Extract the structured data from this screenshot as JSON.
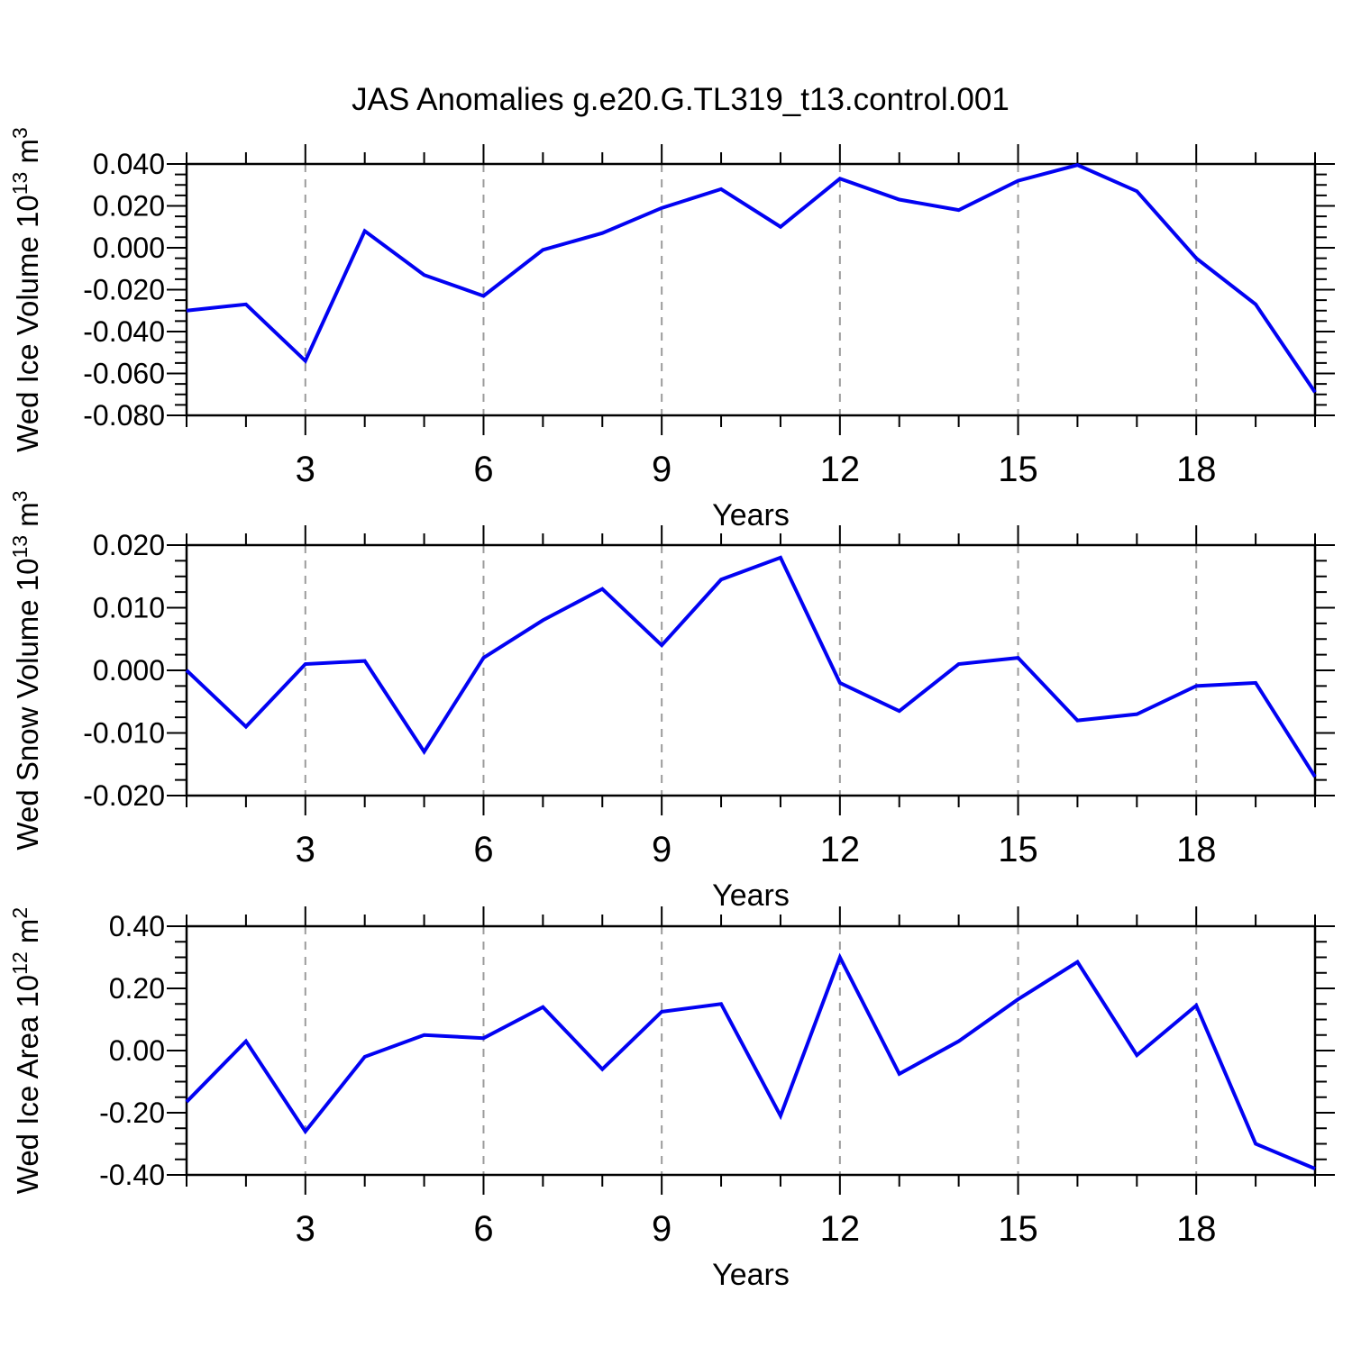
{
  "title": "JAS Anomalies g.e20.G.TL319_t13.control.001",
  "colors": {
    "line": "#0202f2",
    "grid": "#9b9b9b",
    "axis": "#000000",
    "text": "#000000",
    "background": "#ffffff"
  },
  "chart_data": [
    {
      "type": "line",
      "name": "wed-ice-volume",
      "xlabel": "Years",
      "ylabel_parts": [
        {
          "text": "Wed Ice Volume 10",
          "sup": false
        },
        {
          "text": "13",
          "sup": true
        },
        {
          "text": " m",
          "sup": false
        },
        {
          "text": "3",
          "sup": true
        }
      ],
      "x": [
        1,
        2,
        3,
        4,
        5,
        6,
        7,
        8,
        9,
        10,
        11,
        12,
        13,
        14,
        15,
        16,
        17,
        18,
        19,
        20
      ],
      "values": [
        -0.03,
        -0.027,
        -0.054,
        0.008,
        -0.013,
        -0.023,
        -0.001,
        0.007,
        0.019,
        0.028,
        0.01,
        0.033,
        0.023,
        0.018,
        0.032,
        0.0395,
        0.027,
        -0.005,
        -0.027,
        -0.069
      ],
      "xlim": [
        1,
        20
      ],
      "ylim": [
        -0.08,
        0.04
      ],
      "yticks": [
        {
          "v": 0.04,
          "label": "0.040"
        },
        {
          "v": 0.02,
          "label": "0.020"
        },
        {
          "v": 0.0,
          "label": "0.000"
        },
        {
          "v": -0.02,
          "label": "-0.020"
        },
        {
          "v": -0.04,
          "label": "-0.040"
        },
        {
          "v": -0.06,
          "label": "-0.060"
        },
        {
          "v": -0.08,
          "label": "-0.080"
        }
      ],
      "ytick_minor_step": 0.005,
      "xticks_major": [
        {
          "v": 3,
          "label": "3"
        },
        {
          "v": 6,
          "label": "6"
        },
        {
          "v": 9,
          "label": "9"
        },
        {
          "v": 12,
          "label": "12"
        },
        {
          "v": 15,
          "label": "15"
        },
        {
          "v": 18,
          "label": "18"
        }
      ],
      "xtick_minor_step": 1,
      "grid_x": [
        3,
        6,
        9,
        12,
        15,
        18
      ],
      "grid_style": "vertical-dashed",
      "legend": "none"
    },
    {
      "type": "line",
      "name": "wed-snow-volume",
      "xlabel": "Years",
      "ylabel_parts": [
        {
          "text": "Wed Snow Volume 10",
          "sup": false
        },
        {
          "text": "13",
          "sup": true
        },
        {
          "text": " m",
          "sup": false
        },
        {
          "text": "3",
          "sup": true
        }
      ],
      "x": [
        1,
        2,
        3,
        4,
        5,
        6,
        7,
        8,
        9,
        10,
        11,
        12,
        13,
        14,
        15,
        16,
        17,
        18,
        19,
        20
      ],
      "values": [
        0.0,
        -0.009,
        0.001,
        0.0015,
        -0.013,
        0.002,
        0.008,
        0.013,
        0.004,
        0.0145,
        0.018,
        -0.002,
        -0.0065,
        0.001,
        0.002,
        -0.008,
        -0.007,
        -0.0025,
        -0.002,
        -0.017
      ],
      "xlim": [
        1,
        20
      ],
      "ylim": [
        -0.02,
        0.02
      ],
      "yticks": [
        {
          "v": 0.02,
          "label": "0.020"
        },
        {
          "v": 0.01,
          "label": "0.010"
        },
        {
          "v": 0.0,
          "label": "0.000"
        },
        {
          "v": -0.01,
          "label": "-0.010"
        },
        {
          "v": -0.02,
          "label": "-0.020"
        }
      ],
      "ytick_minor_step": 0.0025,
      "xticks_major": [
        {
          "v": 3,
          "label": "3"
        },
        {
          "v": 6,
          "label": "6"
        },
        {
          "v": 9,
          "label": "9"
        },
        {
          "v": 12,
          "label": "12"
        },
        {
          "v": 15,
          "label": "15"
        },
        {
          "v": 18,
          "label": "18"
        }
      ],
      "xtick_minor_step": 1,
      "grid_x": [
        3,
        6,
        9,
        12,
        15,
        18
      ],
      "grid_style": "vertical-dashed",
      "legend": "none"
    },
    {
      "type": "line",
      "name": "wed-ice-area",
      "xlabel": "Years",
      "ylabel_parts": [
        {
          "text": "Wed Ice Area 10",
          "sup": false
        },
        {
          "text": "12",
          "sup": true
        },
        {
          "text": " m",
          "sup": false
        },
        {
          "text": "2",
          "sup": true
        }
      ],
      "x": [
        1,
        2,
        3,
        4,
        5,
        6,
        7,
        8,
        9,
        10,
        11,
        12,
        13,
        14,
        15,
        16,
        17,
        18,
        19,
        20
      ],
      "values": [
        -0.165,
        0.03,
        -0.26,
        -0.02,
        0.05,
        0.04,
        0.14,
        -0.06,
        0.125,
        0.15,
        -0.21,
        0.3,
        -0.075,
        0.03,
        0.165,
        0.285,
        -0.015,
        0.145,
        -0.3,
        -0.38
      ],
      "xlim": [
        1,
        20
      ],
      "ylim": [
        -0.4,
        0.4
      ],
      "yticks": [
        {
          "v": 0.4,
          "label": "0.40"
        },
        {
          "v": 0.2,
          "label": "0.20"
        },
        {
          "v": 0.0,
          "label": "0.00"
        },
        {
          "v": -0.2,
          "label": "-0.20"
        },
        {
          "v": -0.4,
          "label": "-0.40"
        }
      ],
      "ytick_minor_step": 0.05,
      "xticks_major": [
        {
          "v": 3,
          "label": "3"
        },
        {
          "v": 6,
          "label": "6"
        },
        {
          "v": 9,
          "label": "9"
        },
        {
          "v": 12,
          "label": "12"
        },
        {
          "v": 15,
          "label": "15"
        },
        {
          "v": 18,
          "label": "18"
        }
      ],
      "xtick_minor_step": 1,
      "grid_x": [
        3,
        6,
        9,
        12,
        15,
        18
      ],
      "grid_style": "vertical-dashed",
      "legend": "none"
    }
  ]
}
